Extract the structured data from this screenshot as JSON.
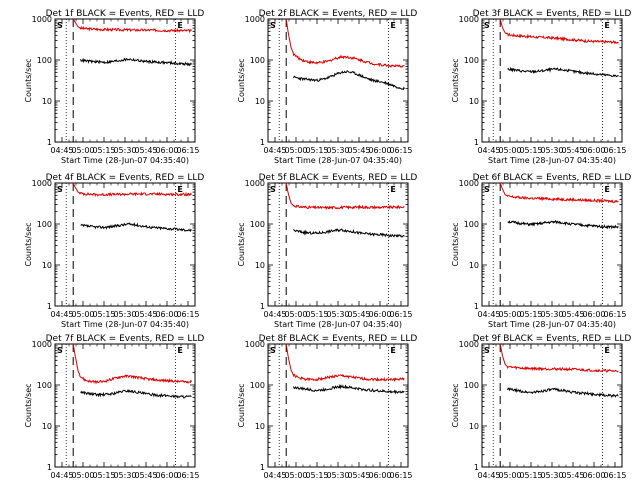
{
  "chart_data": [
    {
      "type": "line",
      "title": "Det 1f BLACK = Events, RED = LLD",
      "xlabel": "Start Time (28-Jun-07 04:35:40)",
      "ylabel": "Counts/sec",
      "yscale": "log",
      "ylim": [
        1,
        1000
      ],
      "xticks": [
        "04:45",
        "05:00",
        "05:15",
        "05:30",
        "05:45",
        "06:00",
        "06:15"
      ],
      "yticks": [
        "1",
        "10",
        "100",
        "1000"
      ],
      "markers": [
        "S",
        "E"
      ],
      "series": [
        {
          "name": "LLD",
          "color": "#e00000",
          "x": [
            0,
            2,
            4,
            6,
            10,
            15,
            20,
            30,
            40,
            50,
            60,
            70,
            80,
            90,
            96
          ],
          "values": [
            1000,
            800,
            640,
            600,
            580,
            570,
            560,
            550,
            545,
            540,
            535,
            530,
            525,
            520,
            520
          ]
        },
        {
          "name": "Events",
          "color": "#000000",
          "x": [
            6,
            10,
            15,
            20,
            25,
            30,
            35,
            40,
            45,
            50,
            55,
            60,
            65,
            70,
            75,
            80,
            85,
            90,
            96
          ],
          "values": [
            100,
            95,
            92,
            90,
            88,
            90,
            95,
            100,
            105,
            100,
            95,
            92,
            90,
            88,
            86,
            85,
            82,
            80,
            78
          ]
        }
      ]
    },
    {
      "type": "line",
      "title": "Det 2f BLACK = Events, RED = LLD",
      "xlabel": "Start Time (28-Jun-07 04:35:40)",
      "ylabel": "Counts/sec",
      "yscale": "log",
      "ylim": [
        1,
        1000
      ],
      "xticks": [
        "04:45",
        "05:00",
        "05:15",
        "05:30",
        "05:45",
        "06:00",
        "06:15"
      ],
      "yticks": [
        "1",
        "10",
        "100",
        "1000"
      ],
      "markers": [
        "S",
        "E"
      ],
      "series": [
        {
          "name": "LLD",
          "color": "#e00000",
          "x": [
            0,
            2,
            4,
            6,
            10,
            15,
            20,
            25,
            30,
            35,
            40,
            45,
            50,
            55,
            60,
            65,
            70,
            75,
            80,
            85,
            90,
            96
          ],
          "values": [
            1000,
            400,
            200,
            140,
            110,
            95,
            88,
            85,
            88,
            95,
            110,
            120,
            118,
            110,
            100,
            90,
            82,
            78,
            75,
            72,
            70,
            72
          ]
        },
        {
          "name": "Events",
          "color": "#000000",
          "x": [
            6,
            10,
            15,
            20,
            25,
            30,
            35,
            40,
            45,
            50,
            55,
            60,
            65,
            70,
            75,
            80,
            85,
            90,
            96
          ],
          "values": [
            38,
            36,
            34,
            33,
            32,
            34,
            38,
            44,
            50,
            52,
            48,
            42,
            36,
            32,
            30,
            28,
            25,
            22,
            20
          ]
        }
      ]
    },
    {
      "type": "line",
      "title": "Det 3f BLACK = Events, RED = LLD",
      "xlabel": "Start Time (28-Jun-07 04:35:40)",
      "ylabel": "Counts/sec",
      "yscale": "log",
      "ylim": [
        1,
        1000
      ],
      "xticks": [
        "04:45",
        "05:00",
        "05:15",
        "05:30",
        "05:45",
        "06:00",
        "06:15"
      ],
      "yticks": [
        "1",
        "10",
        "100",
        "1000"
      ],
      "markers": [
        "S",
        "E"
      ],
      "series": [
        {
          "name": "LLD",
          "color": "#e00000",
          "x": [
            0,
            2,
            4,
            6,
            10,
            15,
            20,
            30,
            40,
            50,
            60,
            70,
            80,
            90,
            96
          ],
          "values": [
            1000,
            600,
            460,
            420,
            400,
            390,
            380,
            360,
            350,
            330,
            310,
            290,
            280,
            275,
            270
          ]
        },
        {
          "name": "Events",
          "color": "#000000",
          "x": [
            6,
            10,
            15,
            20,
            25,
            30,
            35,
            40,
            45,
            50,
            55,
            60,
            65,
            70,
            75,
            80,
            85,
            90,
            96
          ],
          "values": [
            60,
            58,
            55,
            53,
            52,
            53,
            55,
            58,
            60,
            58,
            55,
            52,
            50,
            48,
            46,
            45,
            43,
            42,
            40
          ]
        }
      ]
    },
    {
      "type": "line",
      "title": "Det 4f BLACK = Events, RED = LLD",
      "xlabel": "Start Time (28-Jun-07 04:35:40)",
      "ylabel": "Counts/sec",
      "yscale": "log",
      "ylim": [
        1,
        1000
      ],
      "xticks": [
        "04:45",
        "05:00",
        "05:15",
        "05:30",
        "05:45",
        "06:00",
        "06:15"
      ],
      "yticks": [
        "1",
        "10",
        "100",
        "1000"
      ],
      "markers": [
        "S",
        "E"
      ],
      "series": [
        {
          "name": "LLD",
          "color": "#e00000",
          "x": [
            0,
            2,
            4,
            6,
            10,
            15,
            20,
            30,
            40,
            50,
            60,
            70,
            80,
            90,
            96
          ],
          "values": [
            1000,
            750,
            600,
            560,
            540,
            530,
            520,
            525,
            530,
            540,
            540,
            535,
            530,
            525,
            520
          ]
        },
        {
          "name": "Events",
          "color": "#000000",
          "x": [
            6,
            10,
            15,
            20,
            25,
            30,
            35,
            40,
            45,
            50,
            55,
            60,
            65,
            70,
            75,
            80,
            85,
            90,
            96
          ],
          "values": [
            92,
            90,
            86,
            84,
            83,
            86,
            90,
            95,
            100,
            96,
            90,
            86,
            82,
            80,
            78,
            76,
            74,
            72,
            70
          ]
        }
      ]
    },
    {
      "type": "line",
      "title": "Det 5f BLACK = Events, RED = LLD",
      "xlabel": "Start Time (28-Jun-07 04:35:40)",
      "ylabel": "Counts/sec",
      "yscale": "log",
      "ylim": [
        1,
        1000
      ],
      "xticks": [
        "04:45",
        "05:00",
        "05:15",
        "05:30",
        "05:45",
        "06:00",
        "06:15"
      ],
      "yticks": [
        "1",
        "10",
        "100",
        "1000"
      ],
      "markers": [
        "S",
        "E"
      ],
      "series": [
        {
          "name": "LLD",
          "color": "#e00000",
          "x": [
            0,
            2,
            4,
            6,
            10,
            15,
            20,
            30,
            40,
            50,
            60,
            70,
            80,
            90,
            96
          ],
          "values": [
            1000,
            500,
            320,
            280,
            265,
            258,
            255,
            250,
            252,
            255,
            258,
            256,
            255,
            258,
            260
          ]
        },
        {
          "name": "Events",
          "color": "#000000",
          "x": [
            6,
            10,
            15,
            20,
            25,
            30,
            35,
            40,
            45,
            50,
            55,
            60,
            65,
            70,
            75,
            80,
            85,
            90,
            96
          ],
          "values": [
            70,
            66,
            62,
            60,
            60,
            62,
            66,
            70,
            72,
            68,
            64,
            60,
            58,
            56,
            55,
            54,
            52,
            52,
            50
          ]
        }
      ]
    },
    {
      "type": "line",
      "title": "Det 6f BLACK = Events, RED = LLD",
      "xlabel": "Start Time (28-Jun-07 04:35:40)",
      "ylabel": "Counts/sec",
      "yscale": "log",
      "ylim": [
        1,
        1000
      ],
      "xticks": [
        "04:45",
        "05:00",
        "05:15",
        "05:30",
        "05:45",
        "06:00",
        "06:15"
      ],
      "yticks": [
        "1",
        "10",
        "100",
        "1000"
      ],
      "markers": [
        "S",
        "E"
      ],
      "series": [
        {
          "name": "LLD",
          "color": "#e00000",
          "x": [
            0,
            2,
            4,
            6,
            10,
            15,
            20,
            30,
            40,
            50,
            60,
            70,
            80,
            90,
            96
          ],
          "values": [
            1000,
            700,
            520,
            480,
            460,
            445,
            430,
            420,
            410,
            400,
            390,
            380,
            370,
            360,
            355
          ]
        },
        {
          "name": "Events",
          "color": "#000000",
          "x": [
            6,
            10,
            15,
            20,
            25,
            30,
            35,
            40,
            45,
            50,
            55,
            60,
            65,
            70,
            75,
            80,
            85,
            90,
            96
          ],
          "values": [
            115,
            110,
            105,
            100,
            98,
            100,
            105,
            110,
            112,
            108,
            102,
            98,
            95,
            92,
            90,
            88,
            86,
            85,
            84
          ]
        }
      ]
    },
    {
      "type": "line",
      "title": "Det 7f BLACK = Events, RED = LLD",
      "xlabel": "Start Time (28-Jun-07 04:35:40)",
      "ylabel": "Counts/sec",
      "yscale": "log",
      "ylim": [
        1,
        1000
      ],
      "xticks": [
        "04:45",
        "05:00",
        "05:15",
        "05:30",
        "05:45",
        "06:00",
        "06:15"
      ],
      "yticks": [
        "1",
        "10",
        "100",
        "1000"
      ],
      "markers": [
        "S",
        "E"
      ],
      "series": [
        {
          "name": "LLD",
          "color": "#e00000",
          "x": [
            0,
            2,
            4,
            6,
            10,
            15,
            20,
            25,
            30,
            35,
            40,
            45,
            50,
            55,
            60,
            65,
            70,
            75,
            80,
            85,
            90,
            96
          ],
          "values": [
            1000,
            450,
            220,
            160,
            130,
            120,
            118,
            122,
            135,
            150,
            162,
            165,
            158,
            148,
            140,
            135,
            130,
            128,
            125,
            122,
            120,
            120
          ]
        },
        {
          "name": "Events",
          "color": "#000000",
          "x": [
            6,
            10,
            15,
            20,
            25,
            30,
            35,
            40,
            45,
            50,
            55,
            60,
            65,
            70,
            75,
            80,
            85,
            90,
            96
          ],
          "values": [
            68,
            64,
            60,
            58,
            58,
            60,
            64,
            70,
            72,
            68,
            64,
            60,
            58,
            56,
            55,
            54,
            52,
            52,
            52
          ]
        }
      ]
    },
    {
      "type": "line",
      "title": "Det 8f BLACK = Events, RED = LLD",
      "xlabel": "Start Time (28-Jun-07 04:35:40)",
      "ylabel": "Counts/sec",
      "yscale": "log",
      "ylim": [
        1,
        1000
      ],
      "xticks": [
        "04:45",
        "05:00",
        "05:15",
        "05:30",
        "05:45",
        "06:00",
        "06:15"
      ],
      "yticks": [
        "1",
        "10",
        "100",
        "1000"
      ],
      "markers": [
        "S",
        "E"
      ],
      "series": [
        {
          "name": "LLD",
          "color": "#e00000",
          "x": [
            0,
            2,
            4,
            6,
            10,
            15,
            20,
            25,
            30,
            35,
            40,
            45,
            50,
            55,
            60,
            65,
            70,
            75,
            80,
            85,
            90,
            96
          ],
          "values": [
            1000,
            420,
            230,
            175,
            150,
            140,
            135,
            138,
            145,
            155,
            165,
            168,
            162,
            152,
            145,
            140,
            138,
            136,
            135,
            135,
            138,
            140
          ]
        },
        {
          "name": "Events",
          "color": "#000000",
          "x": [
            6,
            10,
            15,
            20,
            25,
            30,
            35,
            40,
            45,
            50,
            55,
            60,
            65,
            70,
            75,
            80,
            85,
            90,
            96
          ],
          "values": [
            88,
            84,
            80,
            76,
            74,
            76,
            82,
            88,
            92,
            88,
            84,
            80,
            76,
            74,
            72,
            70,
            68,
            68,
            68
          ]
        }
      ]
    },
    {
      "type": "line",
      "title": "Det 9f BLACK = Events, RED = LLD",
      "xlabel": "Start Time (28-Jun-07 04:35:40)",
      "ylabel": "Counts/sec",
      "yscale": "log",
      "ylim": [
        1,
        1000
      ],
      "xticks": [
        "04:45",
        "05:00",
        "05:15",
        "05:30",
        "05:45",
        "06:00",
        "06:15"
      ],
      "yticks": [
        "1",
        "10",
        "100",
        "1000"
      ],
      "markers": [
        "S",
        "E"
      ],
      "series": [
        {
          "name": "LLD",
          "color": "#e00000",
          "x": [
            0,
            2,
            4,
            6,
            10,
            15,
            20,
            30,
            40,
            50,
            60,
            70,
            80,
            90,
            96
          ],
          "values": [
            1000,
            500,
            320,
            280,
            270,
            262,
            255,
            250,
            248,
            245,
            240,
            232,
            225,
            220,
            218
          ]
        },
        {
          "name": "Events",
          "color": "#000000",
          "x": [
            6,
            10,
            15,
            20,
            25,
            30,
            35,
            40,
            45,
            50,
            55,
            60,
            65,
            70,
            75,
            80,
            85,
            90,
            96
          ],
          "values": [
            80,
            76,
            72,
            68,
            66,
            68,
            72,
            76,
            78,
            74,
            70,
            66,
            64,
            62,
            60,
            58,
            56,
            55,
            54
          ]
        }
      ]
    }
  ]
}
